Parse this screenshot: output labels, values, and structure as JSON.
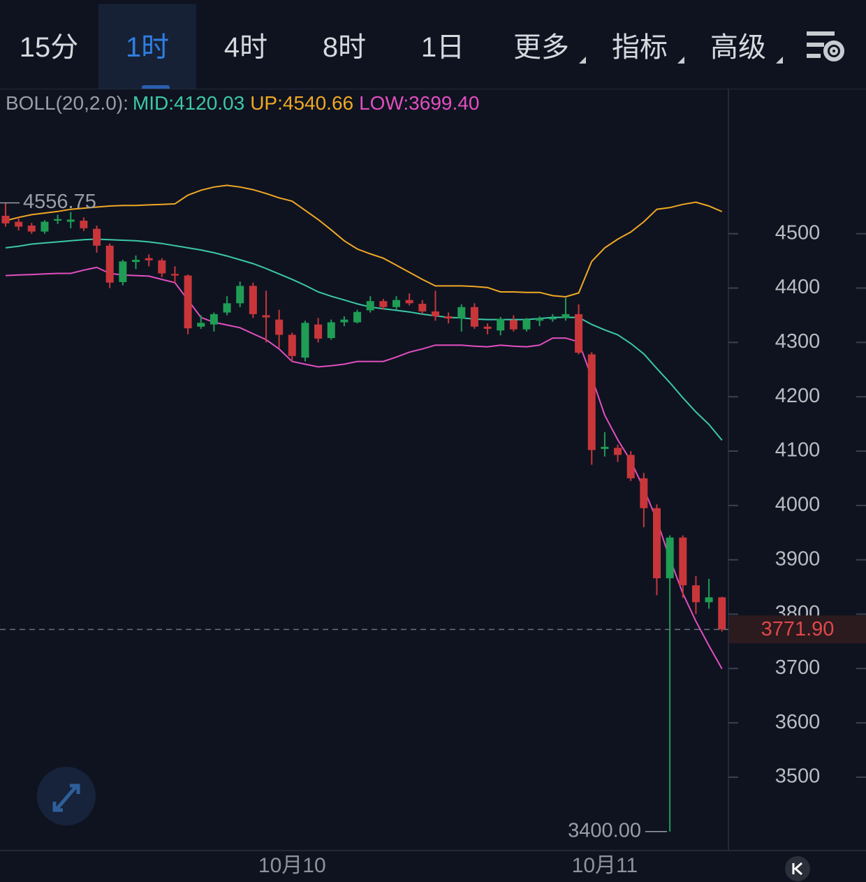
{
  "tabs": [
    "15分",
    "1时",
    "4时",
    "8时",
    "1日",
    "更多",
    "指标",
    "高级"
  ],
  "active_tab": 1,
  "chart_data": {
    "type": "candlestick",
    "indicator_label": "BOLL(20,2.0):",
    "categories": [
      null,
      null,
      null,
      null,
      null,
      null,
      null,
      null,
      null,
      null,
      null,
      null,
      null,
      null,
      null,
      null,
      null,
      null,
      null,
      null,
      null,
      null,
      "10月10",
      null,
      null,
      null,
      null,
      null,
      null,
      null,
      null,
      null,
      null,
      null,
      null,
      null,
      null,
      null,
      null,
      null,
      null,
      null,
      null,
      null,
      null,
      null,
      "10月11",
      null,
      null,
      null,
      null,
      null,
      null,
      null,
      null,
      null
    ],
    "open": [
      4533,
      4522,
      4515,
      4504,
      4524,
      4522,
      4524,
      4509,
      4478,
      4411,
      4448,
      4455,
      4451,
      4426,
      4423,
      4329,
      4333,
      4355,
      4372,
      4404,
      4350,
      4342,
      4314,
      4272,
      4333,
      4308,
      4337,
      4337,
      4359,
      4376,
      4365,
      4378,
      4371,
      4357,
      4348,
      4344,
      4365,
      4329,
      4322,
      4341,
      4324,
      4340,
      4343,
      4345,
      4352,
      4278,
      4104,
      4106,
      4093,
      4050,
      3995,
      3866,
      3941,
      3853,
      3822,
      3831
    ],
    "high": [
      4556.75,
      4528,
      4520,
      4525,
      4535,
      4540,
      4530,
      4515,
      4482,
      4452,
      4460,
      4462,
      4455,
      4440,
      4425,
      4350,
      4355,
      4385,
      4412,
      4410,
      4395,
      4360,
      4318,
      4340,
      4345,
      4342,
      4348,
      4360,
      4385,
      4380,
      4385,
      4390,
      4378,
      4395,
      4355,
      4370,
      4372,
      4335,
      4347,
      4350,
      4345,
      4348,
      4352,
      4382,
      4370,
      4282,
      4135,
      4112,
      4100,
      4060,
      4002,
      3945,
      3945,
      3870,
      3865,
      3832
    ],
    "low": [
      4513,
      4506,
      4500,
      4500,
      4518,
      4510,
      4505,
      4465,
      4400,
      4405,
      4435,
      4440,
      4420,
      4410,
      4315,
      4325,
      4320,
      4350,
      4365,
      4345,
      4300,
      4290,
      4265,
      4265,
      4300,
      4305,
      4330,
      4335,
      4355,
      4360,
      4360,
      4368,
      4352,
      4340,
      4335,
      4320,
      4325,
      4315,
      4313,
      4320,
      4320,
      4330,
      4338,
      4340,
      4278,
      4075,
      4090,
      4080,
      4045,
      3960,
      3835,
      3400,
      3830,
      3800,
      3810,
      3768
    ],
    "close": [
      4519,
      4513,
      4504,
      4522,
      4527,
      4526,
      4510,
      4478,
      4410,
      4449,
      4452,
      4451,
      4427,
      4423,
      4326,
      4336,
      4352,
      4372,
      4404,
      4352,
      4346,
      4314,
      4275,
      4336,
      4307,
      4337,
      4342,
      4356,
      4376,
      4365,
      4378,
      4372,
      4357,
      4348,
      4344,
      4365,
      4329,
      4325,
      4343,
      4324,
      4342,
      4344,
      4345,
      4352,
      4281,
      4102,
      4108,
      4093,
      4050,
      3995,
      3866,
      3941,
      3853,
      3822,
      3831,
      3771.9
    ],
    "up_color": "#1f9d55",
    "down_color": "#c8363a",
    "series": [
      {
        "name": "MID:",
        "color": "#3cc8a8",
        "values": [
          4474,
          4477,
          4481,
          4483,
          4485,
          4487,
          4489,
          4490,
          4489,
          4488,
          4487,
          4485,
          4482,
          4478,
          4474,
          4470,
          4465,
          4459,
          4452,
          4445,
          4436,
          4426,
          4416,
          4405,
          4393,
          4385,
          4378,
          4371,
          4365,
          4362,
          4359,
          4356,
          4352,
          4349,
          4346,
          4345,
          4343,
          4342,
          4342,
          4342,
          4342,
          4344,
          4346,
          4346,
          4346,
          4333,
          4323,
          4314,
          4298,
          4279,
          4252,
          4226,
          4198,
          4172,
          4149,
          4120.03
        ]
      },
      {
        "name": "UP:",
        "color": "#f0a824",
        "values": [
          4524,
          4530,
          4535,
          4538,
          4541,
          4545,
          4547,
          4549,
          4551,
          4552,
          4552,
          4553,
          4554,
          4555,
          4571,
          4580,
          4586,
          4589,
          4586,
          4581,
          4574,
          4566,
          4560,
          4543,
          4526,
          4507,
          4487,
          4472,
          4463,
          4455,
          4442,
          4429,
          4416,
          4404,
          4404,
          4404,
          4403,
          4401,
          4393,
          4393,
          4392,
          4392,
          4386,
          4384,
          4391,
          4449,
          4474,
          4490,
          4503,
          4522,
          4545,
          4548,
          4554,
          4558,
          4551,
          4540.66
        ]
      },
      {
        "name": "LOW:",
        "color": "#e24fc0",
        "values": [
          4423,
          4424,
          4425,
          4426,
          4427,
          4427,
          4433,
          4438,
          4427,
          4424,
          4423,
          4422,
          4416,
          4410,
          4378,
          4346,
          4337,
          4332,
          4327,
          4316,
          4305,
          4288,
          4265,
          4260,
          4255,
          4257,
          4260,
          4265,
          4265,
          4265,
          4273,
          4282,
          4288,
          4295,
          4295,
          4295,
          4293,
          4292,
          4295,
          4293,
          4292,
          4295,
          4308,
          4308,
          4301,
          4236,
          4166,
          4121,
          4082,
          4031,
          3973,
          3902,
          3838,
          3787,
          3742,
          3699.4
        ],
        "value_labels": [
          null,
          null,
          null,
          null,
          null,
          null,
          null,
          null,
          null,
          null,
          null,
          null,
          null,
          null,
          null,
          null,
          null,
          null,
          null,
          null,
          null,
          null,
          null,
          null,
          null,
          null,
          null,
          null,
          null,
          null,
          null,
          null,
          null,
          null,
          null,
          null,
          null,
          null,
          null,
          null,
          null,
          null,
          null,
          null,
          null,
          null,
          null,
          null,
          null,
          null,
          null,
          null,
          null,
          null,
          null,
          "3699.40"
        ]
      }
    ],
    "ylim": [
      3365,
      4763
    ],
    "yticks": [
      3500,
      3600,
      3700,
      3800,
      3900,
      4000,
      4100,
      4200,
      4300,
      4400,
      4500
    ],
    "current_price": {
      "value": 3771.9,
      "label": "3771.90"
    },
    "high_label": 4556.75,
    "low_label": {
      "value": 3400,
      "label": "3400.00"
    }
  }
}
